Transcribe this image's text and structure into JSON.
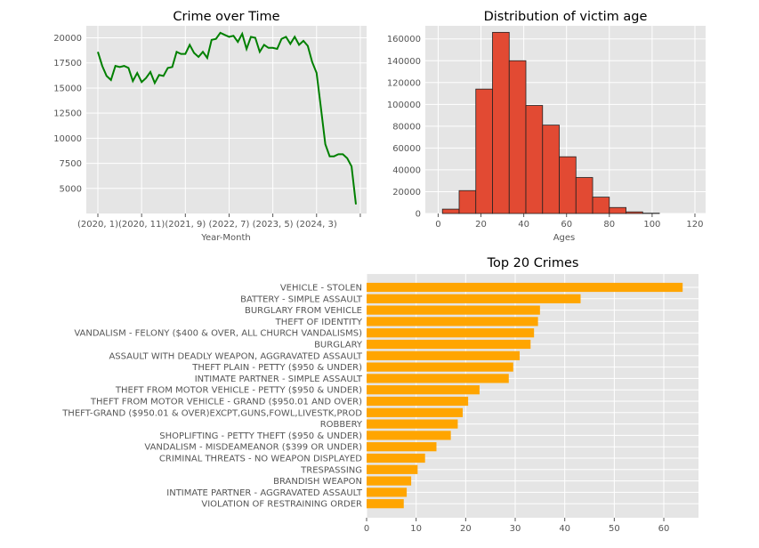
{
  "chart_data": [
    {
      "type": "line",
      "title": "Crime over Time",
      "xlabel": "Year-Month",
      "ylabel": "",
      "color": "#008000",
      "ylim": [
        2500,
        21200
      ],
      "yticks": [
        5000,
        7500,
        10000,
        12500,
        15000,
        17500,
        20000
      ],
      "xtick_labels": [
        "(2020, 1)",
        "(2020, 11)",
        "(2021, 9)",
        "(2022, 7)",
        "(2023, 5)",
        "(2024, 3)",
        ""
      ],
      "xtick_index": [
        0,
        10,
        20,
        30,
        40,
        50,
        60
      ],
      "grid": true,
      "values": [
        18600,
        17200,
        16200,
        15800,
        17200,
        17100,
        17200,
        17000,
        15700,
        16500,
        15600,
        16000,
        16600,
        15500,
        16300,
        16200,
        17000,
        17100,
        18600,
        18400,
        18400,
        19300,
        18500,
        18100,
        18600,
        18000,
        19800,
        19900,
        20500,
        20300,
        20100,
        20200,
        19600,
        20400,
        18900,
        20100,
        20000,
        18600,
        19300,
        19000,
        19000,
        18900,
        19900,
        20100,
        19400,
        20100,
        19300,
        19700,
        19200,
        17600,
        16500,
        13000,
        9400,
        8200,
        8200,
        8400,
        8400,
        8000,
        7200,
        3400
      ]
    },
    {
      "type": "bar",
      "title": "Distribution of victim age",
      "xlabel": "Ages",
      "ylabel": "",
      "color": "#e24a33",
      "bin_width": 7.8,
      "bin_start": 2,
      "xlim": [
        -6,
        125
      ],
      "ylim": [
        0,
        172000
      ],
      "xticks": [
        0,
        20,
        40,
        60,
        80,
        100,
        120
      ],
      "yticks": [
        0,
        20000,
        40000,
        60000,
        80000,
        100000,
        120000,
        140000,
        160000
      ],
      "grid": true,
      "values": [
        4000,
        21000,
        114000,
        166000,
        140000,
        99000,
        81000,
        52000,
        33000,
        15000,
        5500,
        1500,
        300,
        0,
        0
      ]
    },
    {
      "type": "bar",
      "orientation": "horizontal",
      "title": "Top 20 Crimes",
      "xlabel": "",
      "ylabel": "",
      "color": "#ffa500",
      "xlim": [
        0,
        67
      ],
      "xticks": [
        0,
        10,
        20,
        30,
        40,
        50,
        60
      ],
      "grid": true,
      "categories": [
        "VEHICLE - STOLEN",
        "BATTERY - SIMPLE ASSAULT",
        "BURGLARY FROM VEHICLE",
        "THEFT OF IDENTITY",
        "VANDALISM - FELONY ($400 & OVER, ALL CHURCH VANDALISMS)",
        "BURGLARY",
        "ASSAULT WITH DEADLY WEAPON, AGGRAVATED ASSAULT",
        "THEFT PLAIN - PETTY ($950 & UNDER)",
        "INTIMATE PARTNER - SIMPLE ASSAULT",
        "THEFT FROM MOTOR VEHICLE - PETTY ($950 & UNDER)",
        "THEFT FROM MOTOR VEHICLE - GRAND ($950.01 AND OVER)",
        "THEFT-GRAND ($950.01 & OVER)EXCPT,GUNS,FOWL,LIVESTK,PROD",
        "ROBBERY",
        "SHOPLIFTING - PETTY THEFT ($950 & UNDER)",
        "VANDALISM - MISDEAMEANOR ($399 OR UNDER)",
        "CRIMINAL THREATS - NO WEAPON DISPLAYED",
        "TRESPASSING",
        "BRANDISH WEAPON",
        "INTIMATE PARTNER - AGGRAVATED ASSAULT",
        "VIOLATION OF RESTRAINING ORDER"
      ],
      "values": [
        63.8,
        43.2,
        35.0,
        34.6,
        33.8,
        33.1,
        30.9,
        29.6,
        28.7,
        22.8,
        20.5,
        19.4,
        18.4,
        17.0,
        14.1,
        11.8,
        10.3,
        9.0,
        8.1,
        7.5
      ]
    }
  ]
}
